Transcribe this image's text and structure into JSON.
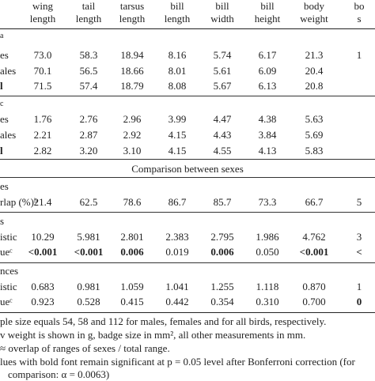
{
  "headers": [
    {
      "l1": "wing",
      "l2": "length"
    },
    {
      "l1": "tail",
      "l2": "length"
    },
    {
      "l1": "tarsus",
      "l2": "length"
    },
    {
      "l1": "bill",
      "l2": "length"
    },
    {
      "l1": "bill",
      "l2": "width"
    },
    {
      "l1": "bill",
      "l2": "height"
    },
    {
      "l1": "body",
      "l2": "weight"
    },
    {
      "l1": "bo",
      "l2": "s"
    }
  ],
  "sections": {
    "means_label": "a",
    "sd_label": "c",
    "comparison_title": "Comparison between sexes"
  },
  "means": [
    {
      "label": "es",
      "bold": false,
      "values": [
        "73.0",
        "58.3",
        "18.94",
        "8.16",
        "5.74",
        "6.17",
        "21.3",
        "1"
      ]
    },
    {
      "label": "ales",
      "bold": false,
      "values": [
        "70.1",
        "56.5",
        "18.66",
        "8.01",
        "5.61",
        "6.09",
        "20.4",
        ""
      ]
    },
    {
      "label": "l",
      "bold": true,
      "values": [
        "71.5",
        "57.4",
        "18.79",
        "8.08",
        "5.67",
        "6.13",
        "20.8",
        ""
      ]
    }
  ],
  "sds": [
    {
      "label": "es",
      "bold": false,
      "values": [
        "1.76",
        "2.76",
        "2.96",
        "3.99",
        "4.47",
        "4.38",
        "5.63",
        ""
      ]
    },
    {
      "label": "ales",
      "bold": false,
      "values": [
        "2.21",
        "2.87",
        "2.92",
        "4.15",
        "4.43",
        "3.84",
        "5.69",
        ""
      ]
    },
    {
      "label": "l",
      "bold": true,
      "values": [
        "2.82",
        "3.20",
        "3.10",
        "4.15",
        "4.55",
        "4.13",
        "5.83",
        ""
      ]
    }
  ],
  "overlap_header": "es",
  "overlap": {
    "label": "rlap (%)ᵇ",
    "values": [
      "21.4",
      "62.5",
      "78.6",
      "86.7",
      "85.7",
      "73.3",
      "66.7",
      "5"
    ]
  },
  "test1_header": "s",
  "test1": [
    {
      "label": "istic",
      "values": [
        "10.29",
        "5.981",
        "2.801",
        "2.383",
        "2.795",
        "1.986",
        "4.762",
        "3"
      ],
      "bold": [
        false,
        false,
        false,
        false,
        false,
        false,
        false,
        false
      ]
    },
    {
      "label": "ueᶜ",
      "values": [
        "<0.001",
        "<0.001",
        "0.006",
        "0.019",
        "0.006",
        "0.050",
        "<0.001",
        "<"
      ],
      "bold": [
        true,
        true,
        true,
        false,
        true,
        false,
        true,
        true
      ]
    }
  ],
  "test2_header": "nces",
  "test2": [
    {
      "label": "istic",
      "values": [
        "0.683",
        "0.981",
        "1.059",
        "1.041",
        "1.255",
        "0.870",
        "1"
      ],
      "bold": [
        false,
        false,
        false,
        false,
        false,
        false,
        false
      ]
    },
    {
      "label": "ueᶜ",
      "values": [
        "0.923",
        "0.528",
        "0.415",
        "0.442",
        "0.354",
        "0.700",
        "0"
      ],
      "bold": [
        false,
        false,
        false,
        false,
        false,
        false,
        true
      ]
    }
  ],
  "test2_cols": [
    0,
    1,
    2,
    3,
    4,
    6,
    7
  ],
  "test2_extra": {
    "col5_row1": "1.118",
    "col5_row2": "0.310"
  },
  "notes": [
    "ple size equals 54, 58 and 112 for males, females and for all birds, respectively.",
    "v weight is shown in g, badge size in mm², all other measurements in mm.",
    "≈ overlap of ranges of sexes / total range.",
    "lues with bold font remain significant at p = 0.05 level after Bonferroni correction (for",
    "comparison: α = 0.0063)"
  ]
}
